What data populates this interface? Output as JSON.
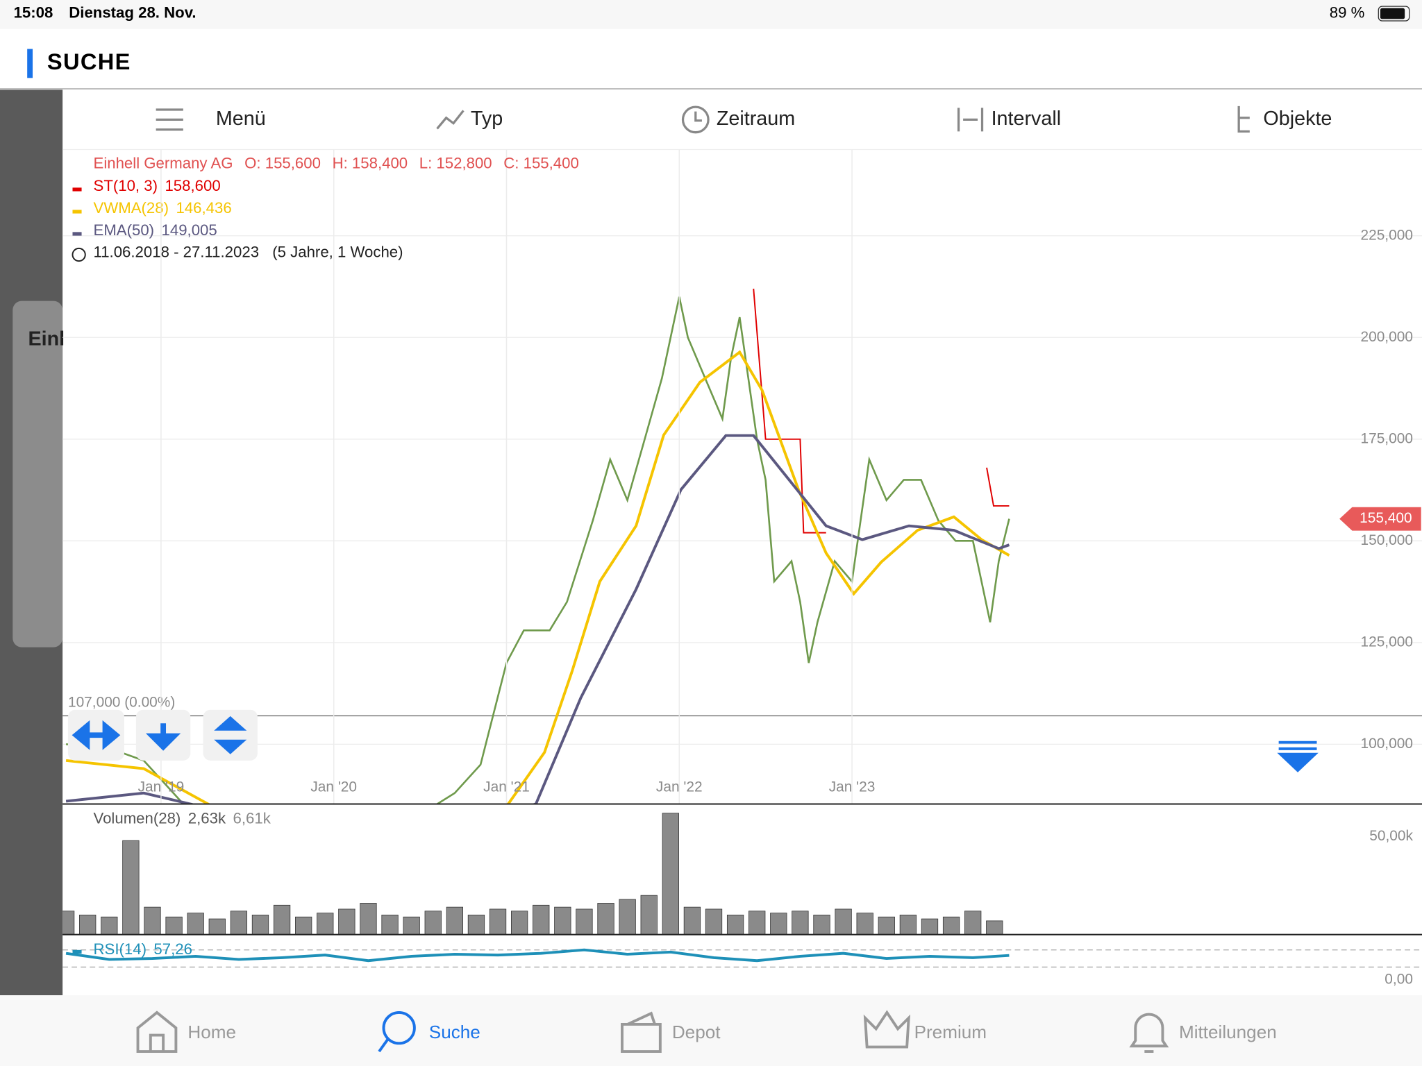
{
  "status_bar": {
    "time": "15:08",
    "date": "Dienstag 28. Nov.",
    "battery": "89 %"
  },
  "header": {
    "title": "SUCHE"
  },
  "toolbar": {
    "items": [
      "Menü",
      "Typ",
      "Zeitraum",
      "Intervall",
      "Objekte"
    ]
  },
  "side_card": {
    "title": "Einl"
  },
  "chart_data": [
    {
      "type": "line",
      "title": "Einhell Germany AG",
      "ohlc_labels": [
        "O: 155,600",
        "H: 158,400",
        "L: 152,800",
        "C: 155,400"
      ],
      "period": "11.06.2018 - 27.11.2023",
      "period_note": "(5 Jahre, 1 Woche)",
      "reference": {
        "value": 107,
        "label": "107,000 (0.00%)"
      },
      "last_price": {
        "value": 155.4,
        "label": "155,400"
      },
      "xlim": [
        2018.43,
        2026.3
      ],
      "xticks": [
        {
          "value": 2019,
          "label": "Jan '19"
        },
        {
          "value": 2020,
          "label": "Jan '20"
        },
        {
          "value": 2021,
          "label": "Jan '21"
        },
        {
          "value": 2022,
          "label": "Jan '22"
        },
        {
          "value": 2023,
          "label": "Jan '23"
        }
      ],
      "ylim": [
        85.3,
        246.2
      ],
      "yticks": [
        {
          "value": 100,
          "label": "100,000"
        },
        {
          "value": 125,
          "label": "125,000"
        },
        {
          "value": 150,
          "label": "150,000"
        },
        {
          "value": 175,
          "label": "175,000"
        },
        {
          "value": 200,
          "label": "200,000"
        },
        {
          "value": 225,
          "label": "225,000"
        }
      ],
      "grid": true,
      "close": {
        "color": "#6f9a4c",
        "x": [
          2018.45,
          2018.7,
          2018.9,
          2019.2,
          2019.6,
          2020.0,
          2020.4,
          2020.7,
          2020.85,
          2021.0,
          2021.1,
          2021.25,
          2021.35,
          2021.5,
          2021.6,
          2021.7,
          2021.8,
          2021.9,
          2022.0,
          2022.05,
          2022.15,
          2022.25,
          2022.3,
          2022.35,
          2022.45,
          2022.5,
          2022.55,
          2022.65,
          2022.7,
          2022.75,
          2022.8,
          2022.9,
          2023.0,
          2023.1,
          2023.2,
          2023.3,
          2023.4,
          2023.5,
          2023.6,
          2023.7,
          2023.75,
          2023.8,
          2023.85,
          2023.91
        ],
        "values": [
          100,
          99,
          96,
          82,
          80,
          78,
          80,
          88,
          95,
          120,
          128,
          128,
          135,
          155,
          170,
          160,
          175,
          190,
          210,
          200,
          190,
          180,
          195,
          205,
          175,
          165,
          140,
          145,
          135,
          120,
          130,
          145,
          140,
          170,
          160,
          165,
          165,
          155,
          150,
          150,
          140,
          130,
          145,
          155.4
        ]
      },
      "series": [
        {
          "name": "ST(10, 3)",
          "value_label": "158,600",
          "color": "#e00000",
          "x": [
            2022.43,
            2022.5,
            2022.7,
            2022.72,
            2022.85,
            2022.86,
            2023.78,
            2023.82,
            2023.91
          ],
          "values": [
            212,
            175,
            175,
            152,
            152,
            null,
            168,
            158.6,
            158.6
          ]
        },
        {
          "name": "VWMA(28)",
          "value_label": "146,436",
          "color": "#f5c400",
          "x": [
            2018.45,
            2018.9,
            2019.5,
            2020.5,
            2021.01,
            2021.22,
            2021.38,
            2021.54,
            2021.75,
            2021.91,
            2022.12,
            2022.35,
            2022.48,
            2022.69,
            2022.85,
            2023.01,
            2023.17,
            2023.38,
            2023.59,
            2023.75,
            2023.91
          ],
          "values": [
            96,
            94,
            80,
            76,
            85.3,
            98,
            118,
            140,
            153.7,
            176,
            189,
            196.4,
            187,
            162.6,
            147,
            137,
            144.8,
            152.6,
            155.9,
            150.3,
            146.436
          ]
        },
        {
          "name": "EMA(50)",
          "value_label": "149,005",
          "color": "#5b5880",
          "x": [
            2018.45,
            2018.9,
            2019.5,
            2020.5,
            2021.17,
            2021.43,
            2021.75,
            2022.01,
            2022.27,
            2022.43,
            2022.64,
            2022.85,
            2023.06,
            2023.33,
            2023.59,
            2023.85,
            2023.91
          ],
          "values": [
            86,
            88,
            82,
            78,
            85.3,
            111.4,
            138.1,
            162.6,
            175.9,
            175.9,
            164.8,
            153.7,
            150.3,
            153.7,
            152.6,
            148.1,
            149.005
          ]
        }
      ]
    },
    {
      "type": "bar",
      "title": "Volumen(28)",
      "title_values": [
        "2,63k",
        "6,61k"
      ],
      "color": "#8a8a8a",
      "x": [
        2018.45,
        2018.575,
        2018.7,
        2018.825,
        2018.95,
        2019.075,
        2019.2,
        2019.325,
        2019.45,
        2019.575,
        2019.7,
        2019.825,
        2019.95,
        2020.075,
        2020.2,
        2020.325,
        2020.45,
        2020.575,
        2020.7,
        2020.825,
        2020.95,
        2021.075,
        2021.2,
        2021.325,
        2021.45,
        2021.575,
        2021.7,
        2021.825,
        2021.95,
        2022.075,
        2022.2,
        2022.325,
        2022.45,
        2022.575,
        2022.7,
        2022.825,
        2022.95,
        2023.075,
        2023.2,
        2023.325,
        2023.45,
        2023.575,
        2023.7,
        2023.825
      ],
      "values": [
        12000,
        10000,
        9000,
        48000,
        14000,
        9000,
        11000,
        8000,
        12000,
        10000,
        15000,
        9000,
        11000,
        13000,
        16000,
        10000,
        9000,
        12000,
        14000,
        10000,
        13000,
        12000,
        15000,
        14000,
        13000,
        16000,
        18000,
        20000,
        62000,
        14000,
        13000,
        10000,
        12000,
        11000,
        12000,
        10000,
        13000,
        11000,
        9000,
        10000,
        8000,
        9000,
        12000,
        7000
      ],
      "xlim": [
        2018.43,
        2026.3
      ],
      "ylim": [
        0,
        66200
      ],
      "yticks": [
        {
          "value": 50000,
          "label": "50,00k"
        }
      ]
    },
    {
      "type": "line",
      "title": "RSI(14)",
      "value_label": "57,26",
      "color": "#1e90b8",
      "x": [
        2018.45,
        2018.7,
        2018.95,
        2019.2,
        2019.45,
        2019.7,
        2019.95,
        2020.2,
        2020.45,
        2020.7,
        2020.95,
        2021.2,
        2021.45,
        2021.7,
        2021.95,
        2022.2,
        2022.45,
        2022.7,
        2022.95,
        2023.2,
        2023.45,
        2023.7,
        2023.91
      ],
      "values": [
        62,
        48,
        50,
        55,
        48,
        52,
        58,
        45,
        55,
        60,
        58,
        62,
        70,
        60,
        65,
        52,
        45,
        55,
        62,
        50,
        55,
        52,
        57.26
      ],
      "xlim": [
        2018.43,
        2026.3
      ],
      "ylim": [
        -35.8,
        101.6
      ],
      "yticks": [
        {
          "value": 0,
          "label": "0,00"
        }
      ],
      "bands": [
        30,
        70
      ]
    }
  ],
  "nav": {
    "items": [
      "Home",
      "Suche",
      "Depot",
      "Premium",
      "Mitteilungen"
    ],
    "active": 1
  }
}
